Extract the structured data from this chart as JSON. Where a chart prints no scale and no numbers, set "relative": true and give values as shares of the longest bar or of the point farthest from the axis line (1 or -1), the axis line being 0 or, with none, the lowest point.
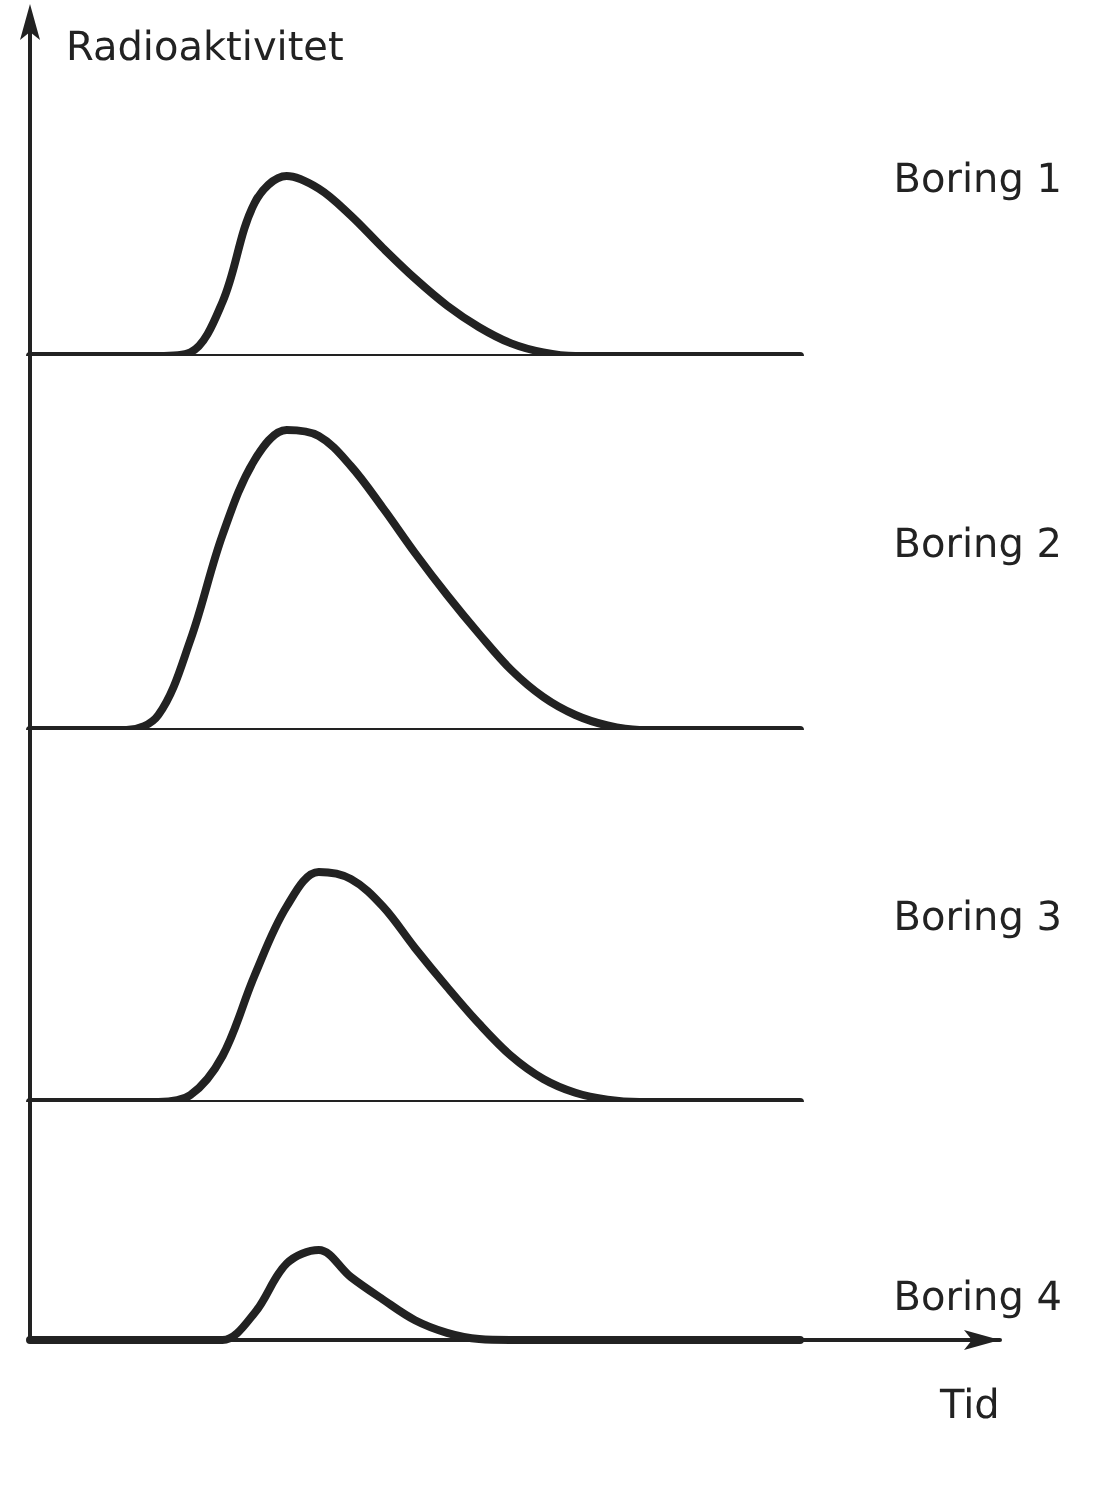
{
  "chart_data": [
    {
      "type": "line",
      "ylabel": "Radioaktivitet",
      "relative": true,
      "legend": "right",
      "marker": "none",
      "categories": [
        null,
        null,
        null,
        null,
        null,
        null,
        null,
        null,
        null,
        null,
        null,
        null,
        null,
        null,
        null,
        null,
        null,
        null,
        null,
        null,
        null,
        null,
        null,
        null,
        null
      ],
      "series": [
        {
          "name": "Boring 1",
          "color": "#222222",
          "values": [
            0,
            0,
            0,
            0,
            0,
            0.02,
            0.3,
            0.85,
            1,
            0.93,
            0.78,
            0.6,
            0.43,
            0.28,
            0.16,
            0.07,
            0.02,
            0,
            0,
            0,
            0,
            0,
            0,
            0,
            0
          ]
        }
      ]
    },
    {
      "type": "line",
      "relative": true,
      "legend": "right",
      "marker": "none",
      "categories": [
        null,
        null,
        null,
        null,
        null,
        null,
        null,
        null,
        null,
        null,
        null,
        null,
        null,
        null,
        null,
        null,
        null,
        null,
        null,
        null,
        null,
        null,
        null,
        null,
        null
      ],
      "series": [
        {
          "name": "Boring 2",
          "color": "#222222",
          "values": [
            0,
            0,
            0,
            0,
            0.05,
            0.3,
            0.65,
            0.9,
            1,
            0.98,
            0.88,
            0.74,
            0.59,
            0.45,
            0.32,
            0.2,
            0.11,
            0.05,
            0.015,
            0,
            0,
            0,
            0,
            0,
            0
          ]
        }
      ]
    },
    {
      "type": "line",
      "relative": true,
      "legend": "right",
      "marker": "none",
      "categories": [
        null,
        null,
        null,
        null,
        null,
        null,
        null,
        null,
        null,
        null,
        null,
        null,
        null,
        null,
        null,
        null,
        null,
        null,
        null,
        null,
        null,
        null,
        null,
        null,
        null
      ],
      "series": [
        {
          "name": "Boring 3",
          "color": "#222222",
          "values": [
            0,
            0,
            0,
            0,
            0,
            0.03,
            0.2,
            0.55,
            0.85,
            1,
            0.97,
            0.85,
            0.67,
            0.5,
            0.34,
            0.2,
            0.1,
            0.04,
            0.01,
            0,
            0,
            0,
            0,
            0,
            0
          ]
        }
      ]
    },
    {
      "type": "line",
      "xlabel": "Tid",
      "relative": true,
      "legend": "right",
      "marker": "none",
      "categories": [
        null,
        null,
        null,
        null,
        null,
        null,
        null,
        null,
        null,
        null,
        null,
        null,
        null,
        null,
        null,
        null,
        null,
        null,
        null,
        null,
        null,
        null,
        null,
        null,
        null
      ],
      "series": [
        {
          "name": "Boring 4",
          "color": "#222222",
          "values": [
            0,
            0,
            0,
            0,
            0,
            0,
            0,
            0.3,
            0.85,
            1,
            0.7,
            0.45,
            0.22,
            0.08,
            0.01,
            0,
            0,
            0,
            0,
            0,
            0,
            0,
            0,
            0,
            0
          ]
        }
      ]
    }
  ]
}
